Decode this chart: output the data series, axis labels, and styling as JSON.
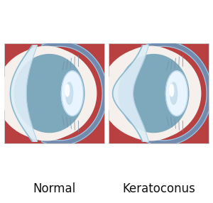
{
  "background_color": "#ffffff",
  "label_normal": "Normal",
  "label_keratoconus": "Keratoconus",
  "label_fontsize": 12,
  "choroid_color": "#b84040",
  "choroid_dark_color": "#9e3535",
  "sclera_white_color": "#f5f0ec",
  "sclera_gray_color": "#c8cdd2",
  "iris_blue_color": "#7ea8bc",
  "iris_blue_dark_color": "#5a8a9e",
  "iris_blue_light_color": "#a0c0d0",
  "cornea_fill_color": "#ddeef8",
  "cornea_edge_color": "#8ab8cc",
  "lens_color": "#e8f4ff",
  "lens_edge_color": "#b0d0e8",
  "lens_center_color": "#c0d8e8",
  "blue_arc_color": "#6898c0",
  "blue_arc_light": "#a8c8e0",
  "muscle_color": "#7090a8",
  "white_sclera_arc": "#e8e0d8",
  "box_line_color": "#cccccc"
}
